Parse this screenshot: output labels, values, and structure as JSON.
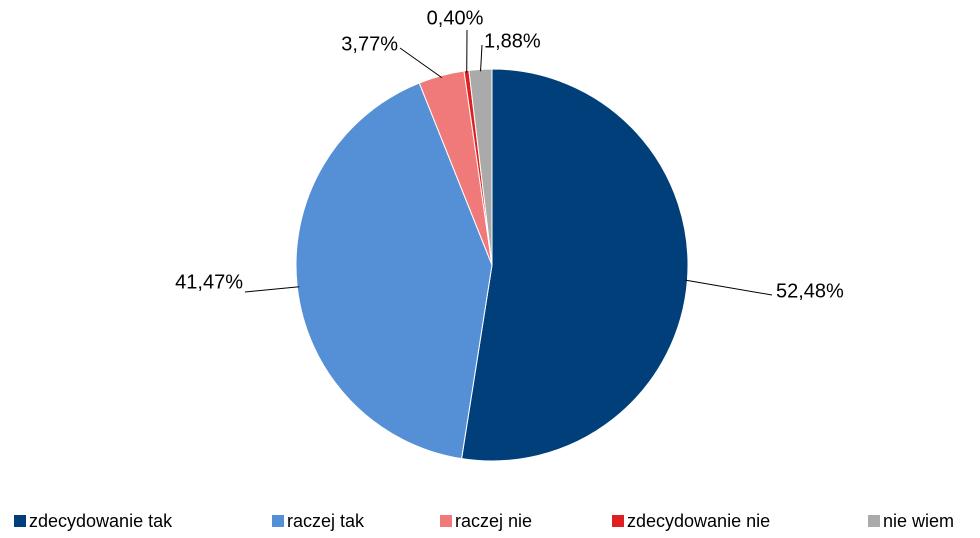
{
  "chart_data": {
    "type": "pie",
    "categories": [
      "zdecydowanie tak",
      "raczej tak",
      "raczej nie",
      "zdecydowanie nie",
      "nie wiem"
    ],
    "values": [
      52.48,
      41.47,
      3.77,
      0.4,
      1.88
    ],
    "value_labels": [
      "52,48%",
      "41,47%",
      "3,77%",
      "0,40%",
      "1,88%"
    ],
    "colors": [
      "#003f7a",
      "#5590d6",
      "#f07a7a",
      "#e02020",
      "#aaaaaa"
    ],
    "legend": "bottom"
  }
}
